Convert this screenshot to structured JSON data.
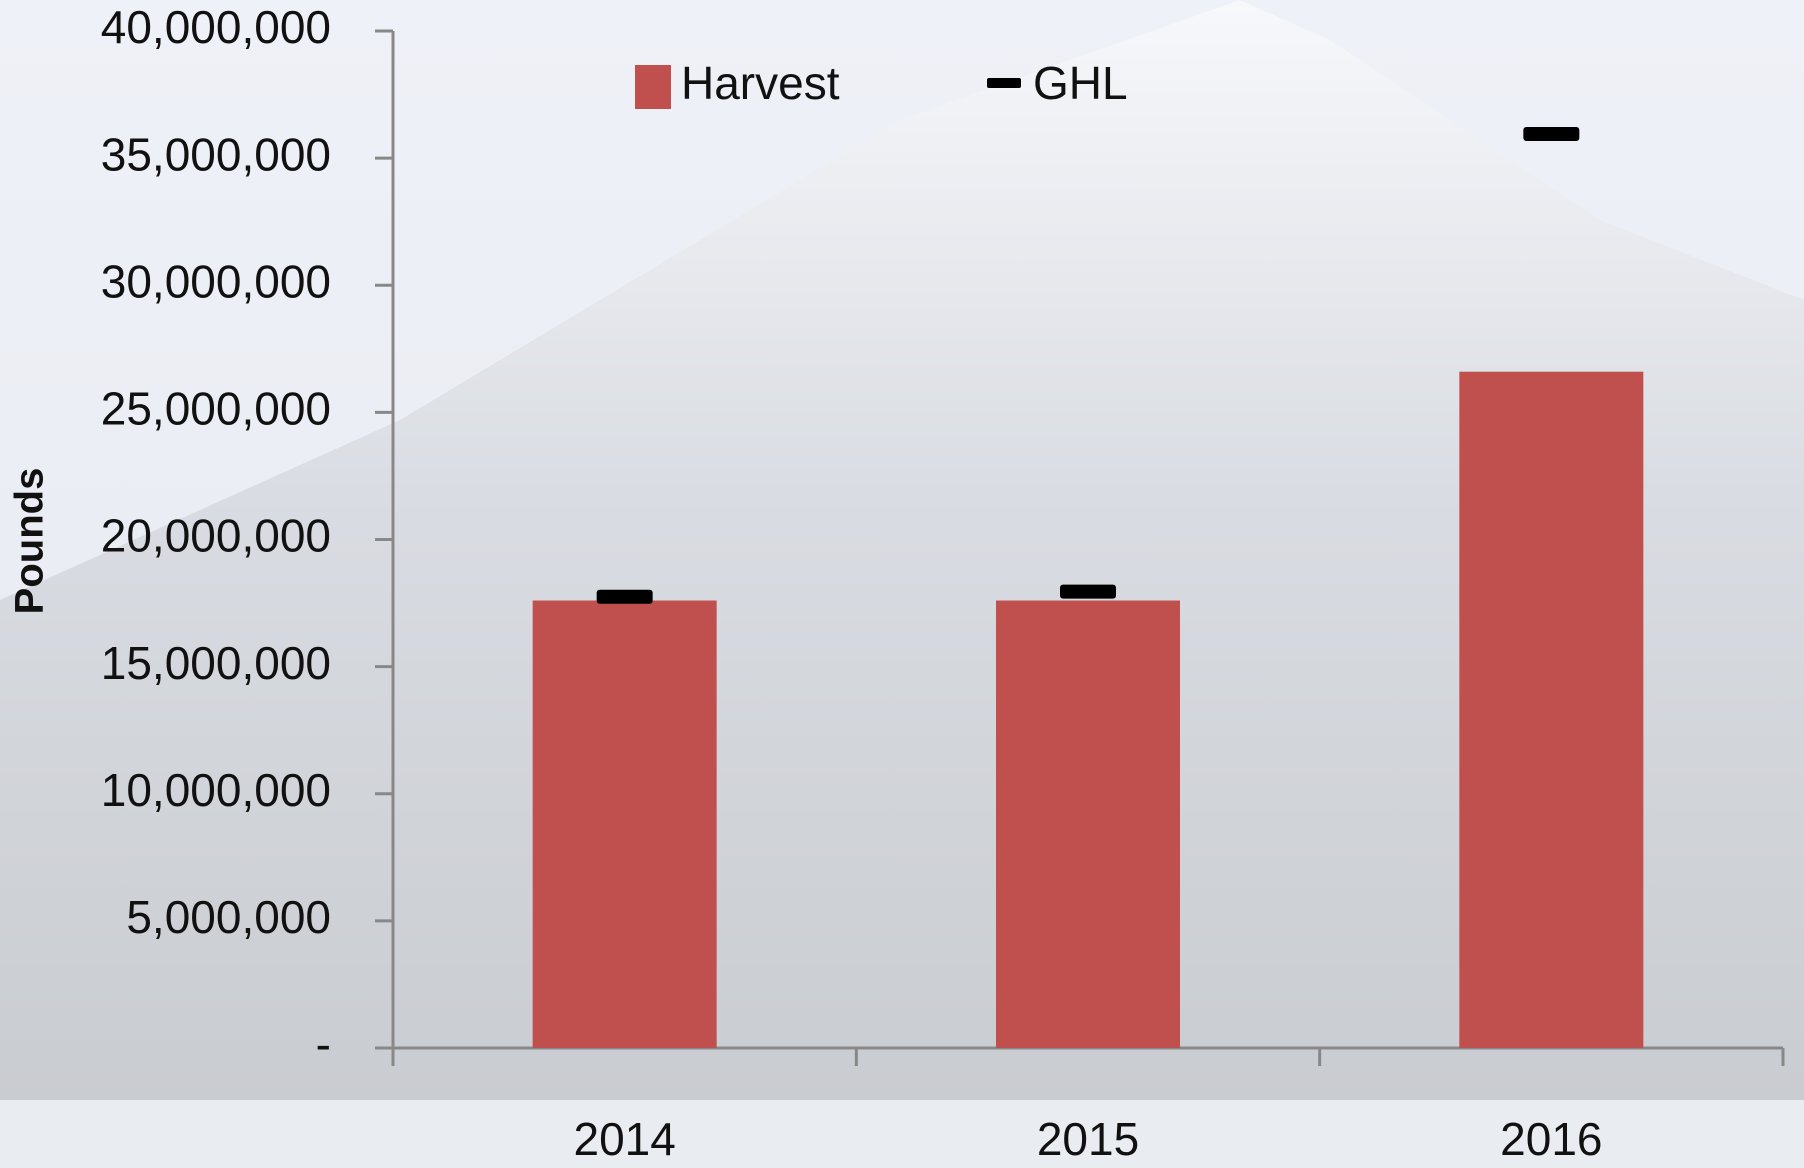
{
  "chart_data": {
    "type": "bar",
    "y_label": "Pounds",
    "categories": [
      "2014",
      "2015",
      "2016"
    ],
    "series": [
      {
        "name": "Harvest",
        "color": "#c0504d",
        "values": [
          17600000,
          17600000,
          26600000
        ]
      },
      {
        "name": "GHL",
        "color": "#000000",
        "marker": "dash",
        "values": [
          17750000,
          17950000,
          35950000
        ]
      }
    ],
    "ylim": [
      0,
      40000000
    ],
    "yticks": [
      {
        "value": 0,
        "label": "-"
      },
      {
        "value": 5000000,
        "label": "5,000,000"
      },
      {
        "value": 10000000,
        "label": "10,000,000"
      },
      {
        "value": 15000000,
        "label": "15,000,000"
      },
      {
        "value": 20000000,
        "label": "20,000,000"
      },
      {
        "value": 25000000,
        "label": "25,000,000"
      },
      {
        "value": 30000000,
        "label": "30,000,000"
      },
      {
        "value": 35000000,
        "label": "35,000,000"
      },
      {
        "value": 40000000,
        "label": "40,000,000"
      }
    ]
  }
}
